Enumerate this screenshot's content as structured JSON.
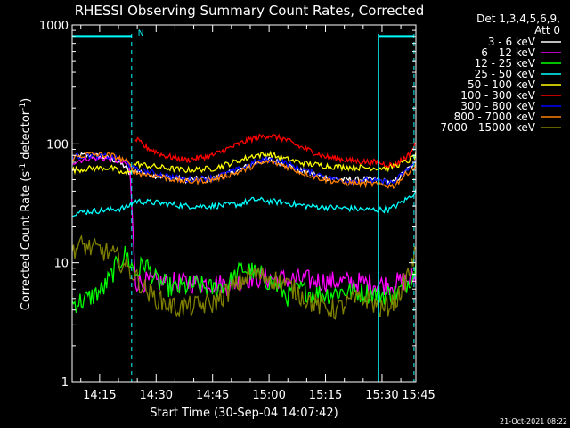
{
  "chart_data": {
    "type": "line",
    "title": "RHESSI Observing Summary Count Rates, Corrected",
    "xlabel": "Start Time (30-Sep-04 14:07:42)",
    "ylabel_main": "Corrected Count Rate (s",
    "ylabel_sup1": "-1",
    "ylabel_mid": " detector",
    "ylabel_sup2": "-1",
    "ylabel_end": ")",
    "yscale": "log",
    "ylim": [
      1,
      1000
    ],
    "xlim_minutes": [
      7.7,
      99
    ],
    "x_ticks": [
      {
        "minute": 15,
        "label": "14:15"
      },
      {
        "minute": 30,
        "label": "14:30"
      },
      {
        "minute": 45,
        "label": "14:45"
      },
      {
        "minute": 60,
        "label": "15:00"
      },
      {
        "minute": 75,
        "label": "15:15"
      },
      {
        "minute": 90,
        "label": "15:30"
      },
      {
        "minute": 105,
        "label": "15:45"
      }
    ],
    "y_ticks": [
      {
        "value": 1,
        "label": "1"
      },
      {
        "value": 10,
        "label": "10"
      },
      {
        "value": 100,
        "label": "100"
      },
      {
        "value": 1000,
        "label": "1000"
      }
    ],
    "legend_header": [
      "Det 1,3,4,5,6,9,",
      "Att 0"
    ],
    "legend_position": "right",
    "footer": "21-Oct-2021 08:22",
    "night_marker": "N",
    "bars": {
      "color": "#00ffff",
      "level": 800,
      "segments": [
        [
          7.7,
          23.5
        ],
        [
          89,
          98.5
        ]
      ],
      "vlines_solid": [
        7.7,
        89
      ],
      "vlines_dashed": [
        23.5,
        98.5
      ]
    },
    "series": [
      {
        "name": "3 - 6 keV",
        "color": "#ffffff",
        "x": [
          7.7,
          10,
          15,
          19,
          22,
          23,
          24.5,
          30,
          38,
          45,
          52,
          56,
          60,
          64,
          68,
          75,
          80,
          88,
          93,
          97,
          99
        ],
        "y": [
          75,
          80,
          79,
          73,
          64,
          55,
          60,
          54,
          50,
          51,
          60,
          69,
          74,
          68,
          60,
          52,
          50,
          50,
          47,
          62,
          68
        ]
      },
      {
        "name": "6 - 12 keV",
        "color": "#ff00ff",
        "x": [
          7.7,
          12,
          18,
          23,
          24.5,
          30,
          40,
          50,
          55,
          60,
          68,
          75,
          85,
          92,
          97,
          99
        ],
        "y": [
          70,
          76,
          75,
          66,
          7,
          6.8,
          6.8,
          6.6,
          7.5,
          7.4,
          7.2,
          7.0,
          6.8,
          6.5,
          7.2,
          7.5
        ]
      },
      {
        "name": "12 - 25 keV",
        "color": "#00ff00",
        "x": [
          7.7,
          12,
          16,
          20,
          22,
          24.5,
          27,
          30,
          35,
          40,
          45,
          50,
          53,
          57,
          60,
          63,
          65,
          68,
          72,
          76,
          80,
          85,
          90,
          94,
          97,
          99
        ],
        "y": [
          4.5,
          5,
          6,
          10,
          12,
          8,
          10,
          7,
          6,
          6.5,
          6,
          7,
          9,
          8,
          7,
          6,
          5.2,
          6,
          5.5,
          5.5,
          5.8,
          5.6,
          5.4,
          5.5,
          7,
          9
        ]
      },
      {
        "name": "25 - 50 keV",
        "color": "#00ffff",
        "x": [
          7.7,
          12,
          18,
          22,
          24.5,
          30,
          38,
          45,
          52,
          56,
          60,
          64,
          70,
          78,
          86,
          92,
          97,
          99
        ],
        "y": [
          26,
          27,
          28,
          29,
          33,
          32,
          30,
          30,
          31,
          34,
          33,
          32,
          30,
          29,
          28,
          28,
          35,
          40
        ]
      },
      {
        "name": "50 - 100 keV",
        "color": "#ffff00",
        "x": [
          7.7,
          12,
          18,
          22,
          24.5,
          30,
          38,
          45,
          52,
          56,
          60,
          64,
          70,
          78,
          86,
          92,
          97,
          99
        ],
        "y": [
          60,
          62,
          63,
          55,
          68,
          64,
          60,
          62,
          72,
          80,
          82,
          75,
          68,
          64,
          63,
          63,
          72,
          80
        ]
      },
      {
        "name": "100 - 300 keV",
        "color": "#ff0000",
        "x": [
          24.5,
          27,
          32,
          38,
          45,
          52,
          56,
          60,
          64,
          68,
          75,
          82,
          88,
          93,
          97,
          99
        ],
        "y": [
          110,
          95,
          80,
          73,
          80,
          100,
          112,
          118,
          110,
          95,
          78,
          72,
          70,
          66,
          80,
          100
        ]
      },
      {
        "name": "300 - 800 keV",
        "color": "#0000ff",
        "x": [
          7.7,
          12,
          18,
          22,
          24.5,
          30,
          38,
          45,
          52,
          56,
          60,
          64,
          68,
          75,
          80,
          88,
          93,
          97,
          99
        ],
        "y": [
          78,
          80,
          78,
          70,
          61,
          56,
          50,
          52,
          61,
          70,
          74,
          70,
          62,
          53,
          49,
          49,
          47,
          62,
          70
        ]
      },
      {
        "name": "800 - 7000 keV",
        "color": "#ff8000",
        "x": [
          7.7,
          12,
          18,
          22,
          24.5,
          30,
          38,
          45,
          52,
          56,
          60,
          64,
          68,
          75,
          80,
          88,
          93,
          97,
          99
        ],
        "y": [
          76,
          82,
          80,
          72,
          57,
          54,
          48,
          50,
          58,
          66,
          71,
          66,
          58,
          50,
          47,
          46,
          44,
          58,
          66
        ]
      },
      {
        "name": "7000 - 15000 keV",
        "color": "#808000",
        "x": [
          7.7,
          10,
          14,
          18,
          21,
          24,
          27,
          30,
          35,
          40,
          45,
          50,
          55,
          60,
          65,
          68,
          72,
          78,
          82,
          86,
          90,
          94,
          97,
          99
        ],
        "y": [
          13,
          14,
          13,
          12,
          10,
          8,
          6,
          5,
          4.2,
          4.3,
          4.5,
          6,
          8,
          7.5,
          6.5,
          5.5,
          4.5,
          4,
          4.8,
          5,
          4,
          5,
          8,
          12
        ]
      }
    ]
  }
}
